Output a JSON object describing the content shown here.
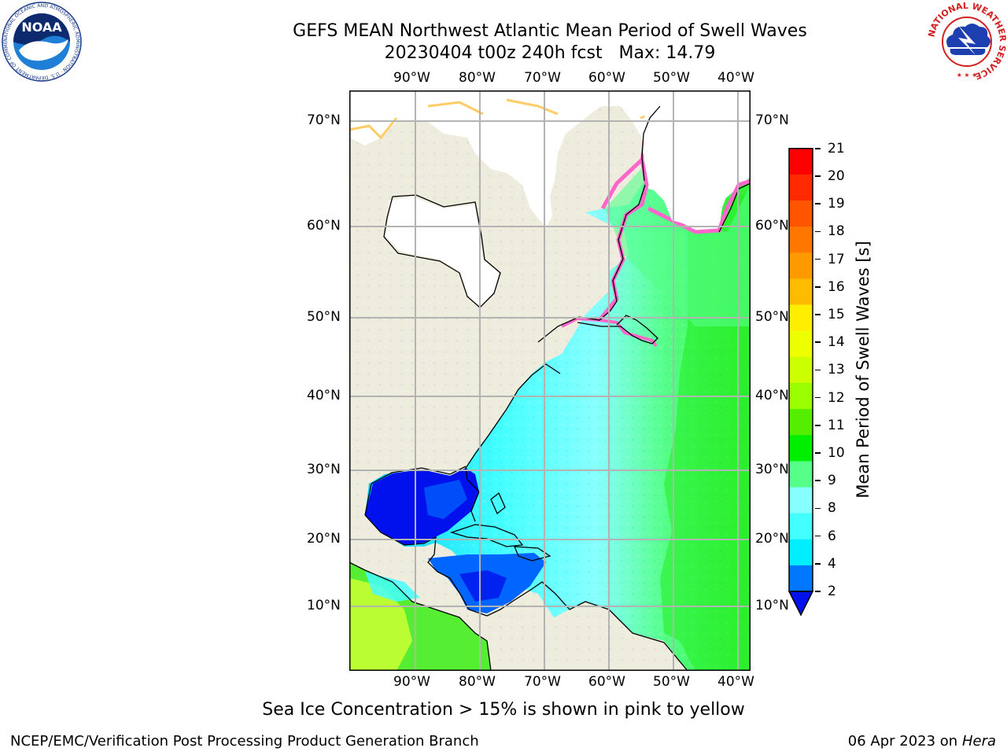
{
  "header": {
    "title": "GEFS MEAN Northwest Atlantic Mean Period of Swell Waves",
    "subtitle": "20230404 t00z 240h fcst   Max: 14.79"
  },
  "logos": {
    "noaa_text": "NOAA",
    "noaa_ring": "NATIONAL OCEANIC AND ATMOSPHERIC ADMINISTRATION · U.S. DEPARTMENT OF COMMERCE",
    "nws_ring": "NATIONAL WEATHER SERVICE"
  },
  "map": {
    "lon_labels": [
      "90°W",
      "80°W",
      "70°W",
      "60°W",
      "50°W",
      "40°W"
    ],
    "lat_labels": [
      "70°N",
      "60°N",
      "50°N",
      "40°N",
      "30°N",
      "20°N",
      "10°N"
    ],
    "land_color": "#eeecdc",
    "ice_free_color": "#ffffff",
    "ice_colors": [
      "#ff66cc",
      "#ffcc66"
    ]
  },
  "colorbar": {
    "title": "Mean Period of Swell Waves [s]",
    "ticks": [
      "21",
      "20",
      "19",
      "18",
      "17",
      "16",
      "15",
      "14",
      "13",
      "12",
      "11",
      "10",
      "9",
      "8",
      "6",
      "4",
      "2"
    ],
    "colors_top_to_bottom": [
      "#ff0000",
      "#ff2a00",
      "#ff5500",
      "#ff7700",
      "#ff9900",
      "#ffbb00",
      "#ffee00",
      "#eeff00",
      "#ccff00",
      "#99ff00",
      "#55ee00",
      "#00ee00",
      "#55ff88",
      "#88ffff",
      "#44ffff",
      "#00eeff",
      "#0077ff"
    ],
    "extend_color": "#0011ee"
  },
  "caption": "Sea Ice Concentration > 15% is shown in pink to yellow",
  "footer": {
    "left": "NCEP/EMC/Verification Post Processing Product Generation Branch",
    "right_date": "06 Apr 2023 on ",
    "right_host": "Hera"
  }
}
